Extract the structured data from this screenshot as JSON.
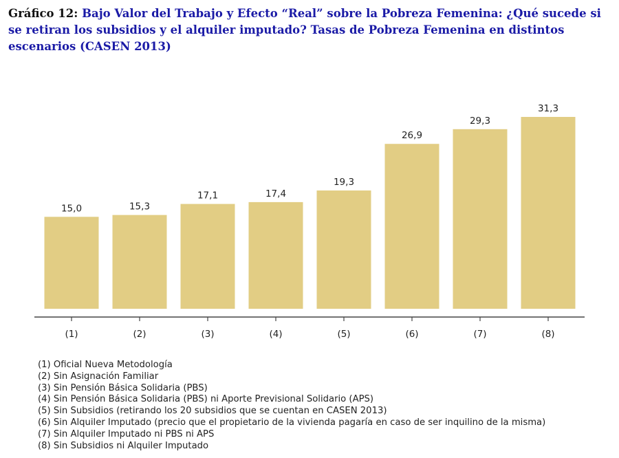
{
  "title": {
    "prefix": "Gráfico 12:",
    "text": "Bajo Valor del Trabajo y Efecto “Real” sobre la Pobreza Femenina: ¿Qué sucede si se retiran los subsidios y el alquiler imputado? Tasas de Pobreza Femenina en distintos escenarios (CASEN 2013)"
  },
  "colors": {
    "bar": "#e2cd84",
    "axis": "#444444",
    "text": "#222222",
    "title": "#1a1aa6"
  },
  "chart_data": {
    "type": "bar",
    "categories": [
      "(1)",
      "(2)",
      "(3)",
      "(4)",
      "(5)",
      "(6)",
      "(7)",
      "(8)"
    ],
    "values": [
      15.0,
      15.3,
      17.1,
      17.4,
      19.3,
      26.9,
      29.3,
      31.3
    ],
    "value_labels": [
      "15,0",
      "15,3",
      "17,1",
      "17,4",
      "19,3",
      "26,9",
      "29,3",
      "31,3"
    ],
    "xlabel": "",
    "ylabel": "",
    "ylim": [
      0,
      31.3
    ],
    "grid": false,
    "legend": "bottom"
  },
  "legend_items": [
    "(1) Oficial Nueva Metodología",
    "(2) Sin Asignación Familiar",
    "(3) Sin Pensión Básica Solidaria (PBS)",
    "(4) Sin Pensión Básica Solidaria (PBS) ni Aporte Previsional Solidario (APS)",
    "(5) Sin Subsidios (retirando los 20 subsidios que se cuentan en CASEN 2013)",
    "(6) Sin Alquiler Imputado (precio que el propietario de la vivienda pagaría en caso de ser inquilino de la misma)",
    "(7) Sin Alquiler Imputado ni PBS ni APS",
    "(8) Sin Subsidios ni Alquiler Imputado"
  ]
}
